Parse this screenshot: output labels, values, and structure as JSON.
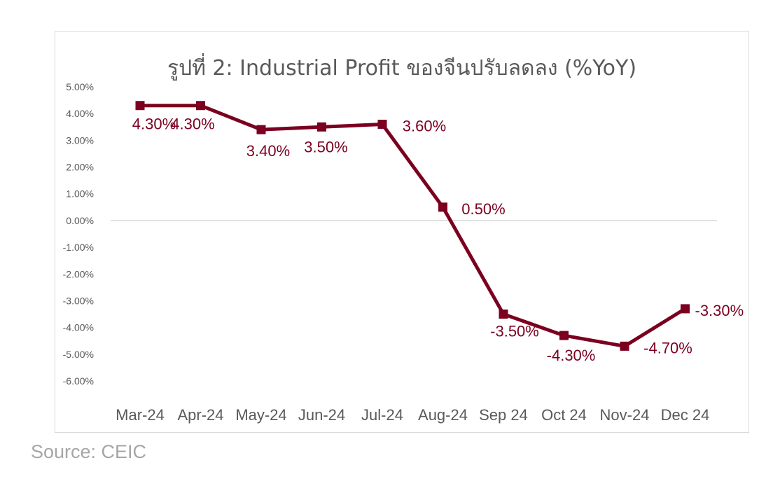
{
  "chart_data": {
    "type": "line",
    "title": "รูปที่ 2: Industrial Profit ของจีนปรับลดลง (%YoY)",
    "categories": [
      "Mar-24",
      "Apr-24",
      "May-24",
      "Jun-24",
      "Jul-24",
      "Aug-24",
      "Sep 24",
      "Oct 24",
      "Nov-24",
      "Dec 24"
    ],
    "series": [
      {
        "values": [
          4.3,
          4.3,
          3.4,
          3.5,
          3.6,
          0.5,
          -3.5,
          -4.3,
          -4.7,
          -3.3
        ],
        "data_labels": [
          "4.30%",
          "4.30%",
          "3.40%",
          "3.50%",
          "3.60%",
          "0.50%",
          "-3.50%",
          "-4.30%",
          "-4.70%",
          "-3.30%"
        ],
        "color": "#7b0020"
      }
    ],
    "y_ticks": [
      5,
      4,
      3,
      2,
      1,
      0,
      -1,
      -2,
      -3,
      -4,
      -5,
      -6
    ],
    "y_tick_labels": [
      "5.00%",
      "4.00%",
      "3.00%",
      "2.00%",
      "1.00%",
      "0.00%",
      "-1.00%",
      "-2.00%",
      "-3.00%",
      "-4.00%",
      "-5.00%",
      "-6.00%"
    ],
    "ylim": [
      -6,
      5
    ],
    "xlabel": "",
    "ylabel": "",
    "grid": false,
    "legend": "none",
    "colors": {
      "series": "#7b0020",
      "title": "#595959",
      "ticks": "#595959",
      "zero_line": "#d9d9d9"
    }
  },
  "source": "Source: CEIC"
}
